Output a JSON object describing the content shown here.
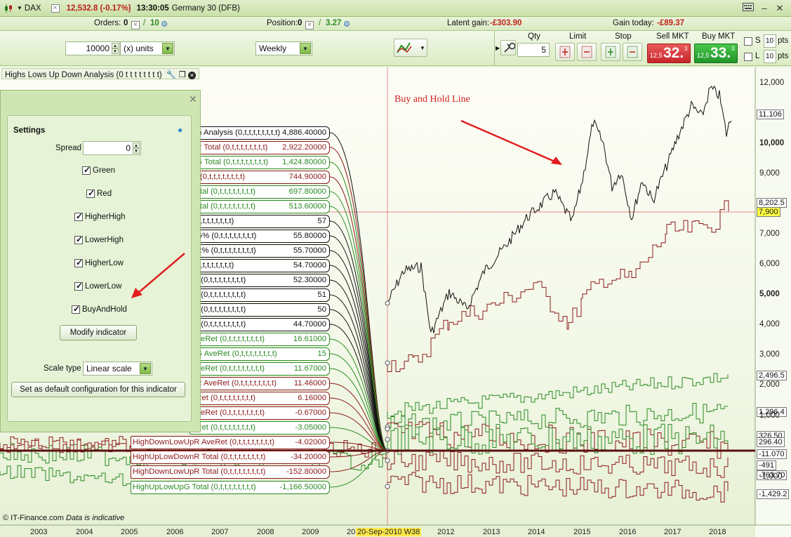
{
  "titlebar": {
    "instrument": "DAX",
    "price_change": "12,532.8 (-0.17%)",
    "time": "13:30:05",
    "market": "Germany 30 (DFB)"
  },
  "orderbar": {
    "orders_label": "Orders:",
    "orders_value": "0",
    "orders_total": "10",
    "position_label": "Position:",
    "position_value": "0",
    "position_amount": "3.27",
    "latent_label": "Latent gain:",
    "latent_value": "-£303.90",
    "gain_today_label": "Gain today:",
    "gain_today_value": "-£89.37"
  },
  "toolbar": {
    "quantity": "10000",
    "units": "(x) units",
    "period": "Weekly",
    "qty_label": "Qty",
    "qty_value": "5",
    "limit_label": "Limit",
    "stop_label": "Stop",
    "sell_label": "Sell MKT",
    "buy_label": "Buy MKT",
    "sell_small": "12,5",
    "sell_big": "32.",
    "sell_sup": "3",
    "buy_small": "12,5",
    "buy_big": "33.",
    "buy_sup": "3",
    "s_label": "S",
    "l_label": "L",
    "s_pts": "10",
    "l_pts": "10",
    "pts": "pts"
  },
  "indicator_header": "Highs Lows Up Down Analysis (0 t t t t t t t t)",
  "annotation": "Buy and Hold Line",
  "series_labels": [
    {
      "name": "wn Analysis (0,t,t,t,t,t,t,t,t)",
      "value": "4,886.40000",
      "color": "#111111"
    },
    {
      "name": "nR Total (0,t,t,t,t,t,t,t,t)",
      "value": "2,922.20000",
      "color": "#8b1a1a"
    },
    {
      "name": "nG Total (0,t,t,t,t,t,t,t,t)",
      "value": "1,424.80000",
      "color": "#2a8a22"
    },
    {
      "name": "al (0,t,t,t,t,t,t,t,t)",
      "value": "744.90000",
      "color": "#8b1a1a"
    },
    {
      "name": "Total (0,t,t,t,t,t,t,t,t)",
      "value": "697.80000",
      "color": "#2a8a22"
    },
    {
      "name": "Total (0,t,t,t,t,t,t,t,t)",
      "value": "513.60000",
      "color": "#2a8a22"
    },
    {
      "name": "0,t,t,t,t,t,t,t,t)",
      "value": "57",
      "color": "#111111"
    },
    {
      "name": "nG% (0,t,t,t,t,t,t,t,t)",
      "value": "55.80000",
      "color": "#111111"
    },
    {
      "name": "nR% (0,t,t,t,t,t,t,t,t)",
      "value": "55.70000",
      "color": "#111111"
    },
    {
      "name": "0,t,t,t,t,t,t,t,t)",
      "value": "54.70000",
      "color": "#111111"
    },
    {
      "name": "% (0,t,t,t,t,t,t,t,t)",
      "value": "52.30000",
      "color": "#111111"
    },
    {
      "name": "% (0,t,t,t,t,t,t,t,t)",
      "value": "51",
      "color": "#111111"
    },
    {
      "name": "% (0,t,t,t,t,t,t,t,t)",
      "value": "50",
      "color": "#111111"
    },
    {
      "name": "% (0,t,t,t,t,t,t,t,t)",
      "value": "44.70000",
      "color": "#111111"
    },
    {
      "name": "AveRet (0,t,t,t,t,t,t,t,t)",
      "value": "16.61000",
      "color": "#2a8a22"
    },
    {
      "name": "nG AveRet (0,t,t,t,t,t,t,t,t)",
      "value": "15",
      "color": "#2a8a22"
    },
    {
      "name": "AveRet (0,t,t,t,t,t,t,t,t)",
      "value": "11.67000",
      "color": "#2a8a22"
    },
    {
      "name": "nR AveRet (0,t,t,t,t,t,t,t,t)",
      "value": "11.46000",
      "color": "#8b1a1a"
    },
    {
      "name": "eRet (0,t,t,t,t,t,t,t,t)",
      "value": "6.16000",
      "color": "#8b1a1a"
    },
    {
      "name": "AveRet (0,t,t,t,t,t,t,t,t)",
      "value": "-0.67000",
      "color": "#8b1a1a"
    },
    {
      "name": "eRet (0,t,t,t,t,t,t,t,t)",
      "value": "-3.05000",
      "color": "#2a8a22"
    },
    {
      "name": "HighDownLowUpR AveRet (0,t,t,t,t,t,t,t,t)",
      "value": "-4.02000",
      "color": "#8b1a1a"
    },
    {
      "name": "HighUpLowDownR Total (0,t,t,t,t,t,t,t,t)",
      "value": "-34.20000",
      "color": "#8b1a1a"
    },
    {
      "name": "HighDownLowUpR Total (0,t,t,t,t,t,t,t,t)",
      "value": "-152.80000",
      "color": "#8b1a1a"
    },
    {
      "name": "HighUpLowUpG Total (0,t,t,t,t,t,t,t,t)",
      "value": "-1,166.50000",
      "color": "#2a8a22"
    }
  ],
  "y_axis": [
    "12,000",
    "11,106",
    "10,000",
    "9,000",
    "8,202.5",
    "7,900",
    "7,000",
    "6,000",
    "5,000",
    "4,000",
    "3,000",
    "2,496.5",
    "2,000",
    "1,296.4",
    "1,000",
    "326.50",
    "296.40",
    "-11.070",
    "-491",
    "-763.70",
    "-1,000",
    "-1,429.2"
  ],
  "x_axis": [
    "2003",
    "2004",
    "2005",
    "2006",
    "2007",
    "2008",
    "2009",
    "20",
    "20-Sep-2010 W38",
    "2012",
    "2013",
    "2014",
    "2015",
    "2016",
    "2017",
    "2018"
  ],
  "footer": {
    "copyright": "© IT-Finance.com",
    "note": "Data is indicative"
  },
  "settings": {
    "title": "Settings",
    "spread_label": "Spread",
    "spread_value": "0",
    "checkboxes": [
      "Green",
      "Red",
      "HigherHigh",
      "LowerHigh",
      "HigherLow",
      "LowerLow",
      "BuyAndHold"
    ],
    "modify_button": "Modify indicator",
    "scale_label": "Scale type",
    "scale_value": "Linear scale",
    "default_button": "Set as default configuration for this indicator"
  },
  "colors": {
    "accent_green": "#2d8a22",
    "accent_red": "#c0221b",
    "buy_hold_line": "#111111"
  }
}
